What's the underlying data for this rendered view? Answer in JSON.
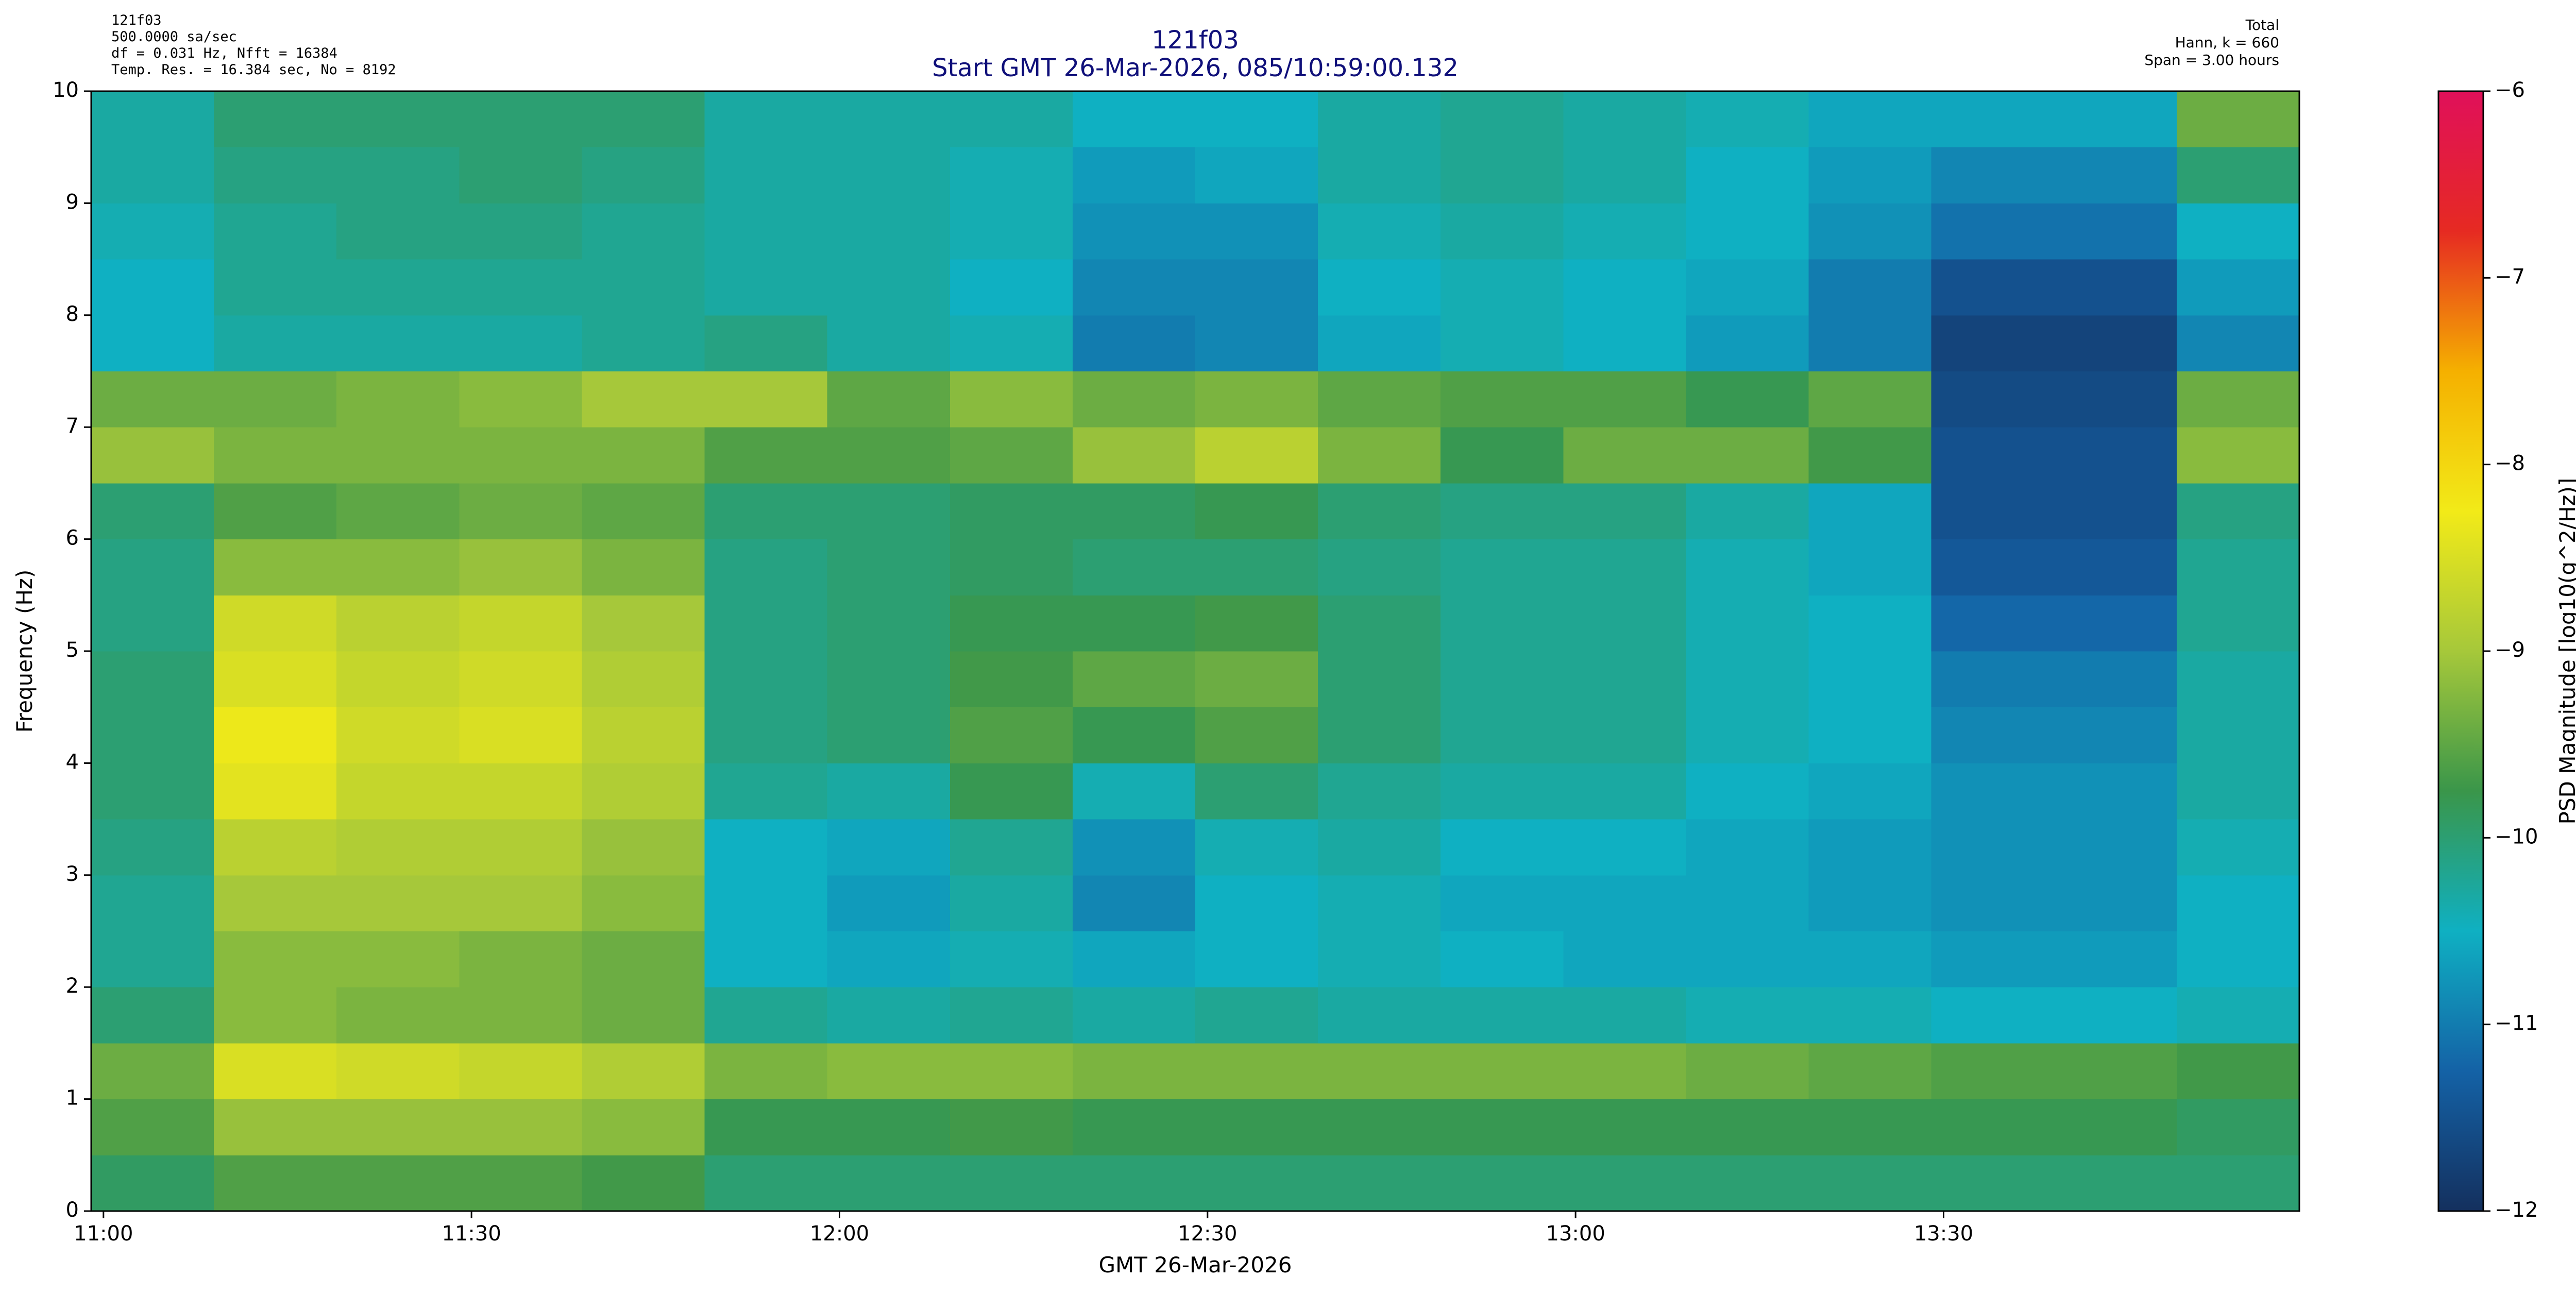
{
  "chart_data": {
    "type": "heatmap",
    "title": "121f03",
    "subtitle": "Start GMT 26-Mar-2026, 085/10:59:00.132",
    "info_left": [
      "121f03",
      "500.0000 sa/sec",
      "df = 0.031 Hz,  Nfft = 16384",
      "Temp. Res. = 16.384 sec, No = 8192"
    ],
    "info_right": [
      "Total",
      "Hann, k = 660",
      "Span = 3.00 hours"
    ],
    "xlabel": "GMT 26-Mar-2026",
    "ylabel": "Frequency (Hz)",
    "colorbar_label": "PSD Magnitude [log10(g^2/Hz)]",
    "xlim": [
      659,
      839
    ],
    "ylim": [
      0,
      10
    ],
    "xticks": [
      {
        "value": 660,
        "label": "11:00"
      },
      {
        "value": 690,
        "label": "11:30"
      },
      {
        "value": 720,
        "label": "12:00"
      },
      {
        "value": 750,
        "label": "12:30"
      },
      {
        "value": 780,
        "label": "13:00"
      },
      {
        "value": 810,
        "label": "13:30"
      }
    ],
    "yticks": [
      0,
      1,
      2,
      3,
      4,
      5,
      6,
      7,
      8,
      9,
      10
    ],
    "clim": [
      -12,
      -6
    ],
    "cticks": [
      {
        "value": -12,
        "label": "−12"
      },
      {
        "value": -11,
        "label": "−11"
      },
      {
        "value": -10,
        "label": "−10"
      },
      {
        "value": -9,
        "label": "−9"
      },
      {
        "value": -8,
        "label": "−8"
      },
      {
        "value": -7,
        "label": "−7"
      },
      {
        "value": -6,
        "label": "−6"
      }
    ],
    "colormap": [
      "#14305e",
      "#1462a6",
      "#0fb0c2",
      "#3a964a",
      "#a6c83a",
      "#f2ea18",
      "#f5b000",
      "#e62a22",
      "#e0105a"
    ],
    "xbins": [
      659,
      669,
      679,
      689,
      699,
      709,
      719,
      729,
      739,
      749,
      759,
      769,
      779,
      789,
      799,
      809,
      819,
      829,
      839
    ],
    "ybins": [
      0,
      0.5,
      1,
      1.5,
      2,
      2.5,
      3,
      3.5,
      4,
      4.5,
      5,
      5.5,
      6,
      6.5,
      7,
      7.5,
      8,
      8.5,
      9,
      9.5,
      10
    ],
    "values": [
      [
        -9.9,
        -9.6,
        -9.6,
        -9.6,
        -9.7,
        -10.0,
        -10.0,
        -10.0,
        -10.0,
        -10.0,
        -10.0,
        -10.0,
        -10.0,
        -10.0,
        -10.0,
        -10.0,
        -10.0,
        -10.0
      ],
      [
        -9.6,
        -9.1,
        -9.1,
        -9.1,
        -9.2,
        -9.8,
        -9.8,
        -9.7,
        -9.8,
        -9.8,
        -9.8,
        -9.8,
        -9.8,
        -9.8,
        -9.8,
        -9.8,
        -9.8,
        -9.9
      ],
      [
        -9.4,
        -8.5,
        -8.6,
        -8.7,
        -8.9,
        -9.3,
        -9.2,
        -9.2,
        -9.3,
        -9.3,
        -9.3,
        -9.3,
        -9.3,
        -9.4,
        -9.5,
        -9.6,
        -9.6,
        -9.7
      ],
      [
        -10.0,
        -9.2,
        -9.3,
        -9.3,
        -9.4,
        -10.2,
        -10.3,
        -10.2,
        -10.3,
        -10.2,
        -10.3,
        -10.3,
        -10.3,
        -10.4,
        -10.4,
        -10.5,
        -10.5,
        -10.4
      ],
      [
        -10.2,
        -9.2,
        -9.2,
        -9.3,
        -9.4,
        -10.5,
        -10.6,
        -10.4,
        -10.6,
        -10.5,
        -10.4,
        -10.5,
        -10.6,
        -10.6,
        -10.6,
        -10.7,
        -10.7,
        -10.5
      ],
      [
        -10.2,
        -9.0,
        -9.0,
        -9.0,
        -9.2,
        -10.5,
        -10.7,
        -10.3,
        -10.9,
        -10.5,
        -10.4,
        -10.6,
        -10.6,
        -10.6,
        -10.7,
        -10.8,
        -10.8,
        -10.5
      ],
      [
        -10.1,
        -8.8,
        -8.9,
        -8.9,
        -9.1,
        -10.5,
        -10.6,
        -10.2,
        -10.8,
        -10.4,
        -10.3,
        -10.5,
        -10.5,
        -10.6,
        -10.7,
        -10.8,
        -10.8,
        -10.4
      ],
      [
        -10.0,
        -8.4,
        -8.7,
        -8.7,
        -8.9,
        -10.2,
        -10.3,
        -9.8,
        -10.4,
        -10.0,
        -10.2,
        -10.3,
        -10.3,
        -10.5,
        -10.6,
        -10.8,
        -10.8,
        -10.3
      ],
      [
        -10.0,
        -8.3,
        -8.6,
        -8.5,
        -8.8,
        -10.1,
        -10.0,
        -9.6,
        -9.8,
        -9.6,
        -10.0,
        -10.2,
        -10.2,
        -10.4,
        -10.5,
        -10.9,
        -10.9,
        -10.3
      ],
      [
        -10.0,
        -8.5,
        -8.7,
        -8.6,
        -8.9,
        -10.1,
        -10.0,
        -9.7,
        -9.5,
        -9.4,
        -10.0,
        -10.2,
        -10.2,
        -10.4,
        -10.5,
        -11.0,
        -11.0,
        -10.3
      ],
      [
        -10.1,
        -8.6,
        -8.8,
        -8.7,
        -9.0,
        -10.1,
        -10.0,
        -9.8,
        -9.8,
        -9.7,
        -10.0,
        -10.2,
        -10.2,
        -10.4,
        -10.5,
        -11.2,
        -11.2,
        -10.2
      ],
      [
        -10.1,
        -9.2,
        -9.2,
        -9.1,
        -9.3,
        -10.1,
        -10.0,
        -9.9,
        -10.0,
        -10.0,
        -10.1,
        -10.2,
        -10.2,
        -10.4,
        -10.6,
        -11.4,
        -11.4,
        -10.2
      ],
      [
        -10.0,
        -9.6,
        -9.5,
        -9.4,
        -9.5,
        -10.0,
        -10.0,
        -9.9,
        -9.9,
        -9.8,
        -10.0,
        -10.1,
        -10.1,
        -10.3,
        -10.6,
        -11.5,
        -11.5,
        -10.1
      ],
      [
        -9.1,
        -9.3,
        -9.3,
        -9.3,
        -9.3,
        -9.6,
        -9.6,
        -9.5,
        -9.1,
        -8.8,
        -9.3,
        -9.8,
        -9.4,
        -9.4,
        -9.7,
        -11.5,
        -11.5,
        -9.2
      ],
      [
        -9.4,
        -9.4,
        -9.3,
        -9.2,
        -9.0,
        -9.0,
        -9.5,
        -9.2,
        -9.4,
        -9.3,
        -9.5,
        -9.6,
        -9.6,
        -9.8,
        -9.5,
        -11.6,
        -11.6,
        -9.4
      ],
      [
        -10.5,
        -10.3,
        -10.3,
        -10.3,
        -10.2,
        -10.1,
        -10.3,
        -10.4,
        -11.0,
        -10.9,
        -10.6,
        -10.4,
        -10.5,
        -10.7,
        -11.0,
        -11.7,
        -11.7,
        -10.9
      ],
      [
        -10.5,
        -10.2,
        -10.2,
        -10.2,
        -10.2,
        -10.3,
        -10.3,
        -10.5,
        -10.9,
        -10.9,
        -10.5,
        -10.4,
        -10.5,
        -10.6,
        -11.0,
        -11.5,
        -11.5,
        -10.7
      ],
      [
        -10.4,
        -10.2,
        -10.1,
        -10.1,
        -10.2,
        -10.3,
        -10.3,
        -10.4,
        -10.8,
        -10.8,
        -10.4,
        -10.3,
        -10.4,
        -10.5,
        -10.8,
        -11.1,
        -11.1,
        -10.5
      ],
      [
        -10.3,
        -10.1,
        -10.1,
        -10.0,
        -10.1,
        -10.3,
        -10.3,
        -10.4,
        -10.7,
        -10.6,
        -10.3,
        -10.2,
        -10.3,
        -10.5,
        -10.7,
        -10.9,
        -10.9,
        -10.0
      ],
      [
        -10.3,
        -10.0,
        -10.0,
        -10.0,
        -10.0,
        -10.3,
        -10.3,
        -10.3,
        -10.5,
        -10.5,
        -10.3,
        -10.2,
        -10.3,
        -10.4,
        -10.6,
        -10.6,
        -10.6,
        -9.4
      ]
    ]
  }
}
